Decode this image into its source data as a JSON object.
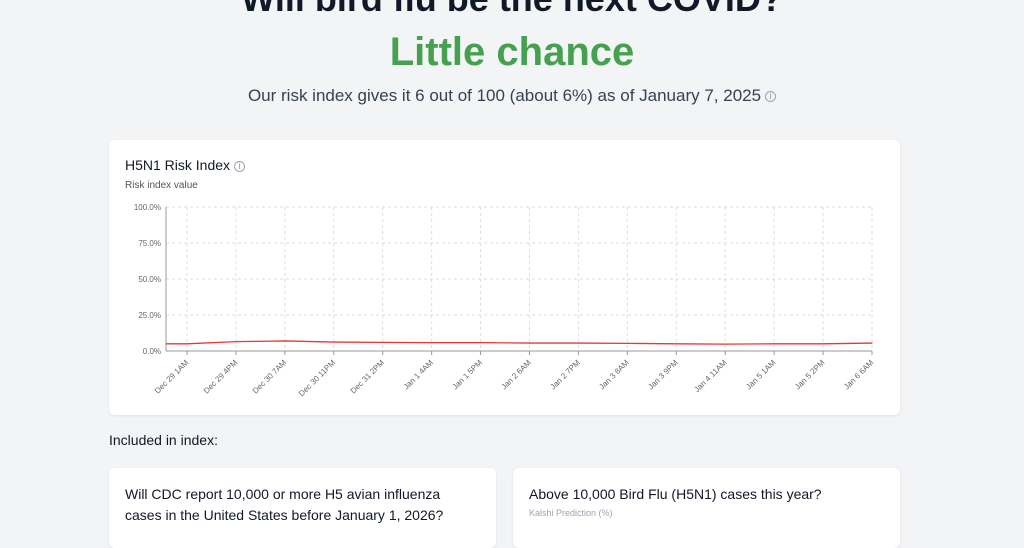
{
  "header": {
    "question": "Will bird flu be the next COVID?",
    "verdict": "Little chance",
    "summary": "Our risk index gives it 6 out of 100 (about 6%) as of January 7, 2025",
    "verdict_color": "#45a04f"
  },
  "chart_data": {
    "type": "line",
    "title": "H5N1 Risk Index",
    "ylabel": "Risk index value",
    "xlabel": "",
    "ylim": [
      0,
      100
    ],
    "yticks": [
      "0.0%",
      "25.0%",
      "50.0%",
      "75.0%",
      "100.0%"
    ],
    "x": [
      "Dec 29 1AM",
      "Dec 29 4PM",
      "Dec 30 7AM",
      "Dec 30 11PM",
      "Dec 31 2PM",
      "Jan 1 4AM",
      "Jan 1 5PM",
      "Jan 2 6AM",
      "Jan 2 7PM",
      "Jan 3 8AM",
      "Jan 3 9PM",
      "Jan 4 11AM",
      "Jan 5 1AM",
      "Jan 5 2PM",
      "Jan 6 6AM"
    ],
    "series": [
      {
        "values": [
          5,
          6.5,
          7,
          6.2,
          6,
          5.8,
          5.8,
          5.5,
          5.5,
          5.3,
          5,
          4.8,
          5,
          5,
          5.5
        ],
        "color": "#e53935"
      }
    ],
    "grid": true
  },
  "included": {
    "label": "Included in index:",
    "markets": [
      {
        "title": "Will CDC report 10,000 or more H5 avian influenza cases in the United States before January 1, 2026?"
      },
      {
        "title": "Above 10,000 Bird Flu (H5N1) cases this year?",
        "source": "Kalshi Prediction (%)"
      }
    ]
  }
}
